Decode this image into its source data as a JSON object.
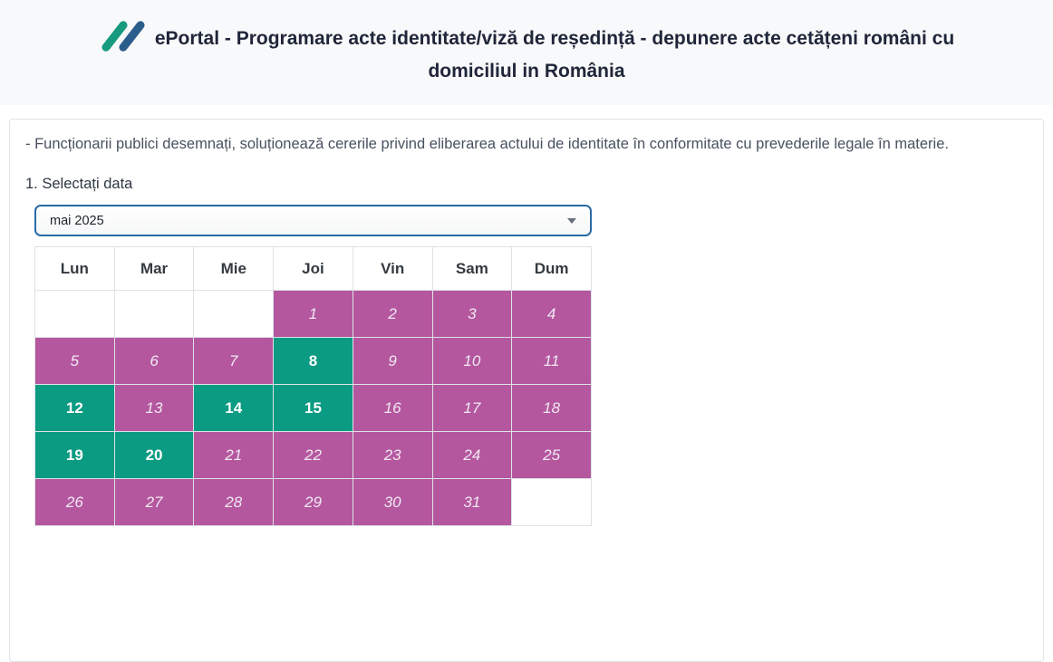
{
  "header": {
    "title_line1": "ePortal - Programare acte identitate/viză de reședință - depunere acte cetățeni români cu",
    "title_line2": "domiciliul in România",
    "logo_colors": {
      "green": "#169b7f",
      "blue": "#2b5d8c"
    }
  },
  "intro_text": "- Funcționarii publici desemnați, soluționează cererile privind eliberarea actului de identitate în conformitate cu prevederile legale în materie.",
  "date_picker": {
    "step_label": "1. Selectați data",
    "selected_month": "mai 2025",
    "focus_border_color": "#2a6aa5"
  },
  "calendar": {
    "day_headers": [
      "Lun",
      "Mar",
      "Mie",
      "Joi",
      "Vin",
      "Sam",
      "Dum"
    ],
    "weeks": [
      [
        "",
        "",
        "",
        "1",
        "2",
        "3",
        "4"
      ],
      [
        "5",
        "6",
        "7",
        "8",
        "9",
        "10",
        "11"
      ],
      [
        "12",
        "13",
        "14",
        "15",
        "16",
        "17",
        "18"
      ],
      [
        "19",
        "20",
        "21",
        "22",
        "23",
        "24",
        "25"
      ],
      [
        "26",
        "27",
        "28",
        "29",
        "30",
        "31",
        ""
      ]
    ],
    "available_days": [
      "8",
      "12",
      "14",
      "15",
      "19",
      "20"
    ],
    "colors": {
      "available": "#0b9b82",
      "unavailable": "#b4579f"
    }
  }
}
